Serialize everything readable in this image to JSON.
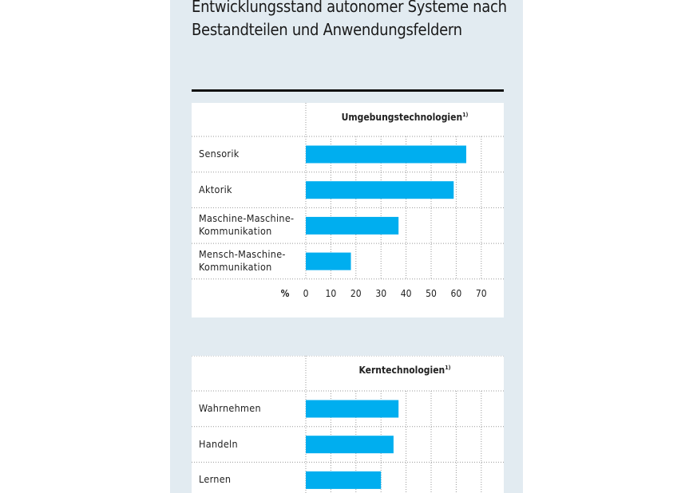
{
  "title": "Entwicklungsstand autonomer Systeme nach Bestandteilen und Anwendungsfeldern",
  "colors": {
    "bar": "#00aeef",
    "panel": "#e2ebf1"
  },
  "chart_data": [
    {
      "type": "bar",
      "orientation": "horizontal",
      "title": "Umgebungstechnologien",
      "footnote": "1)",
      "categories": [
        "Sensorik",
        "Aktorik",
        "Maschine-Maschine-Kommunikation",
        "Mensch-Maschine-Kommunikation"
      ],
      "values": [
        64,
        59,
        37,
        18
      ],
      "xlabel": "%",
      "xticks": [
        "0",
        "10",
        "20",
        "30",
        "40",
        "50",
        "60",
        "70"
      ],
      "xlim": [
        0,
        79
      ],
      "grid": true
    },
    {
      "type": "bar",
      "orientation": "horizontal",
      "title": "Kerntechnologien",
      "footnote": "1)",
      "categories": [
        "Wahrnehmen",
        "Handeln",
        "Lernen"
      ],
      "values": [
        37,
        35,
        30
      ],
      "xlim": [
        0,
        79
      ],
      "grid": true
    }
  ]
}
